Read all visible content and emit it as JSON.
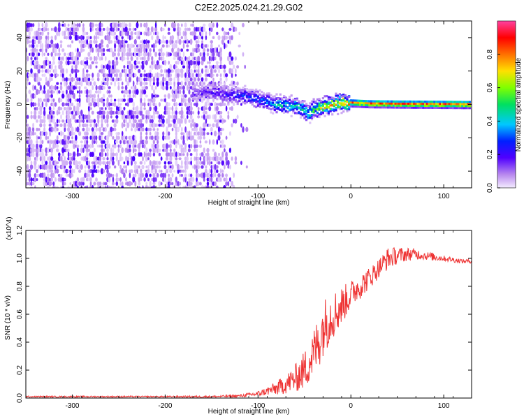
{
  "title": "C2E2.2025.024.21.29.G02",
  "chart_data": [
    {
      "type": "heatmap",
      "xlabel": "Height of straight line (km)",
      "ylabel": "Frequency (Hz)",
      "xlim": [
        -350,
        130
      ],
      "ylim": [
        -50,
        50
      ],
      "x_ticks": [
        -300,
        -200,
        -100,
        0,
        100
      ],
      "y_ticks": [
        -40,
        -20,
        0,
        20,
        40
      ],
      "colorbar": {
        "label": "Normalized spectral amplitude",
        "range": [
          0,
          1
        ],
        "ticks": [
          "0.0",
          "0.2",
          "0.4",
          "0.6",
          "0.8"
        ],
        "colors": [
          "#f4ecff",
          "#b888ee",
          "#5000ff",
          "#0020ff",
          "#00c8ff",
          "#00e060",
          "#80ff00",
          "#ffe000",
          "#ff7000",
          "#ff0000",
          "#ff40a0"
        ]
      },
      "ridge": {
        "x": [
          -170,
          -150,
          -130,
          -110,
          -100,
          -90,
          -80,
          -70,
          -60,
          -50,
          -45,
          -40,
          -30,
          -20,
          -10,
          0,
          20,
          50,
          80,
          130
        ],
        "frequency": [
          7,
          8,
          6,
          5,
          3,
          2,
          0,
          0,
          -1,
          -3,
          -6,
          -3,
          -1,
          0,
          1,
          1,
          0.5,
          0.3,
          0.2,
          0
        ],
        "amplitude": [
          0.2,
          0.25,
          0.3,
          0.35,
          0.4,
          0.45,
          0.5,
          0.55,
          0.6,
          0.6,
          0.5,
          0.7,
          0.8,
          0.85,
          0.9,
          0.95,
          1.0,
          1.0,
          1.0,
          1.0
        ]
      },
      "noise_floor_end_x": -150
    },
    {
      "type": "line",
      "xlabel": "Height of straight line (km)",
      "ylabel": "SNR (10 * v/v)",
      "multiplier": "(x10^4)",
      "xlim": [
        -350,
        130
      ],
      "ylim": [
        0,
        1.2
      ],
      "x_ticks": [
        -300,
        -200,
        -100,
        0,
        100
      ],
      "y_ticks": [
        "0.0",
        "0.2",
        "0.4",
        "0.6",
        "0.8",
        "1.0",
        "1.2"
      ],
      "color": "#ee3333",
      "series": [
        {
          "x": [
            -350,
            -300,
            -250,
            -200,
            -150,
            -120,
            -100,
            -90,
            -80,
            -70,
            -60,
            -50,
            -45,
            -40,
            -35,
            -30,
            -25,
            -20,
            -15,
            -10,
            -5,
            0,
            5,
            10,
            20,
            30,
            40,
            50,
            60,
            70,
            80,
            90,
            100,
            110,
            120,
            130
          ],
          "values": [
            0.01,
            0.01,
            0.01,
            0.01,
            0.01,
            0.015,
            0.03,
            0.05,
            0.07,
            0.1,
            0.14,
            0.2,
            0.26,
            0.32,
            0.4,
            0.5,
            0.56,
            0.6,
            0.62,
            0.66,
            0.7,
            0.74,
            0.78,
            0.8,
            0.86,
            0.93,
            1.0,
            1.02,
            1.03,
            1.03,
            1.02,
            1.01,
            1.0,
            0.99,
            0.98,
            0.98
          ],
          "noise": [
            0.005,
            0.005,
            0.005,
            0.005,
            0.007,
            0.01,
            0.02,
            0.03,
            0.05,
            0.07,
            0.1,
            0.14,
            0.16,
            0.18,
            0.2,
            0.2,
            0.2,
            0.18,
            0.16,
            0.14,
            0.12,
            0.1,
            0.1,
            0.09,
            0.08,
            0.07,
            0.08,
            0.06,
            0.05,
            0.04,
            0.03,
            0.03,
            0.02,
            0.02,
            0.015,
            0.015
          ]
        }
      ]
    }
  ]
}
